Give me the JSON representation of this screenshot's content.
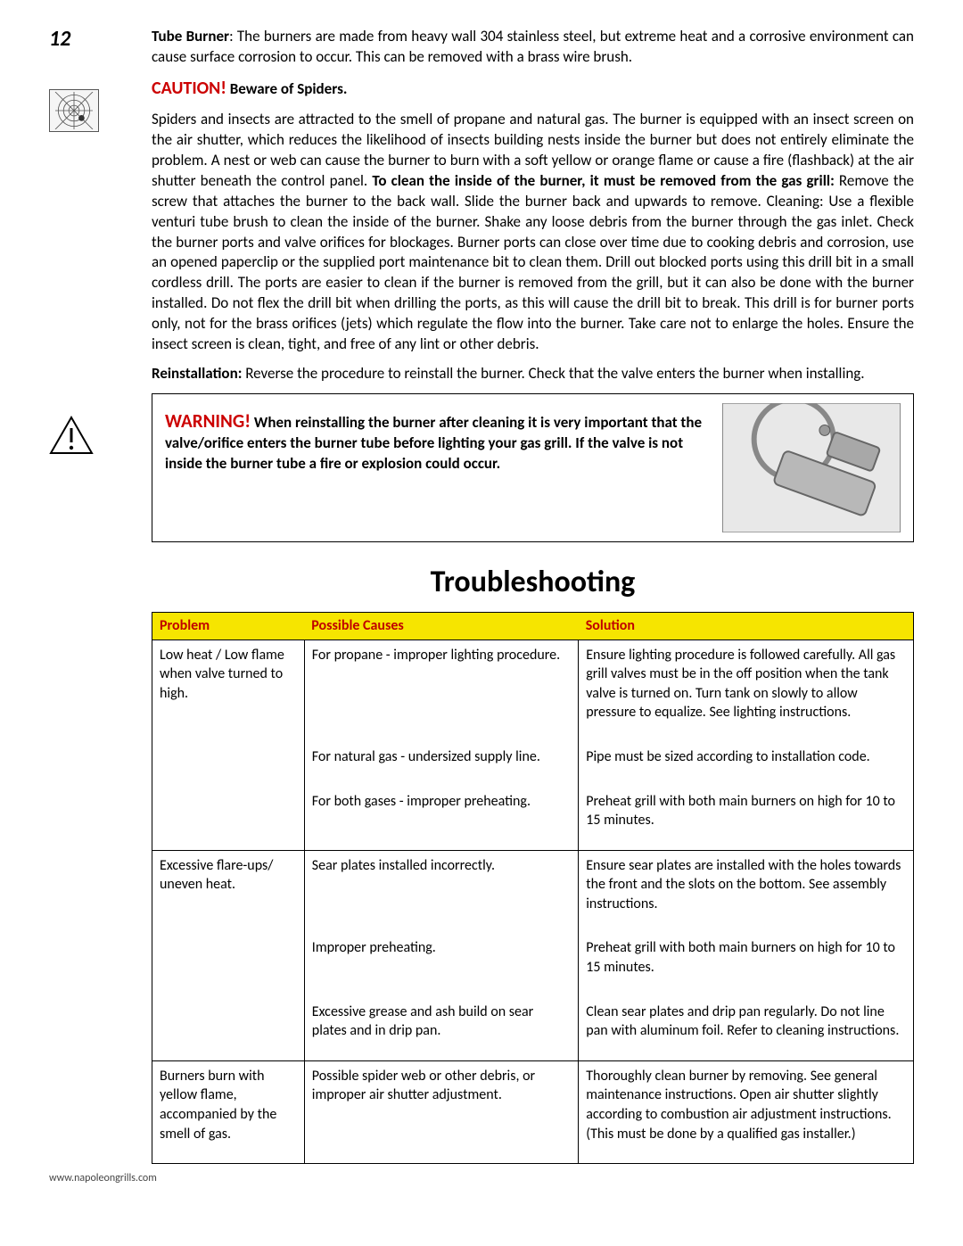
{
  "page_number": "12",
  "tube_burner_label": "Tube Burner",
  "tube_burner_text": ": The burners are made from heavy wall 304 stainless steel, but extreme heat and a corrosive environment can cause surface corrosion to occur. This can be removed with a brass wire brush.",
  "caution_leader": "CAUTION!",
  "caution_rest": " Beware of Spiders.",
  "spider_para_1": "Spiders and insects are attracted to the smell of propane and natural gas. The burner is equipped with an insect screen on the air shutter, which reduces the likelihood of insects building nests inside the burner but does not entirely eliminate the problem. A nest or web can cause the burner to burn with a soft yellow or orange flame or cause a fire (flashback) at the air shutter beneath the control panel. ",
  "spider_bold_1": "To clean the inside of the burner, it must be removed from the gas grill:",
  "spider_para_2": " Remove the screw that attaches the burner to the back wall.  Slide the burner back and upwards to remove.  Cleaning: Use a flexible venturi tube brush to clean the inside of the burner. Shake any loose debris from the burner through the gas inlet. Check the burner ports and valve orifices for blockages. Burner ports can close over time due to cooking debris and corrosion, use an opened paperclip or the supplied port maintenance bit to clean them.  Drill out blocked ports using this drill bit in a small cordless drill. The ports are easier to clean if the burner is removed from the grill, but it can also be done with the burner installed. Do not flex the drill bit when drilling the ports, as this will cause the drill bit to break. This drill is for burner ports only, not for the brass orifices (jets) which regulate the flow into the burner. Take care not to enlarge the holes.  Ensure the insect screen is clean, tight, and free of any lint or other debris.",
  "reinstall_label": "Reinstallation:",
  "reinstall_text": " Reverse the procedure to reinstall the burner. Check that the valve enters the burner when installing.",
  "warning_leader": "WARNING!",
  "warning_body": " When reinstalling the burner after cleaning it is very important that the valve/orifice enters the burner tube before lighting your gas grill. If the valve is not inside the burner tube a fire or explosion could occur.",
  "troubleshooting_heading": "Troubleshooting",
  "table": {
    "headers": {
      "problem": "Problem",
      "causes": "Possible Causes",
      "solution": "Solution"
    },
    "header_bg": "#f6e500",
    "header_fg": "#c00000",
    "col_widths_pct": [
      20,
      36,
      44
    ],
    "rows": [
      {
        "sep": true,
        "problem": "Low heat / Low flame when valve turned to high.",
        "cause": "For propane - improper lighting procedure.",
        "solution": "Ensure lighting procedure is followed carefully.  All gas grill valves must be in the off position when the tank valve is turned on. Turn tank on slowly to allow pressure to equalize. See lighting instructions."
      },
      {
        "sep": false,
        "problem": "",
        "cause": "For natural gas - undersized supply line.",
        "solution": "Pipe must be sized according to installation code."
      },
      {
        "sep": false,
        "problem": "",
        "cause": "For both gases - improper preheating.",
        "solution": "Preheat grill with both main burners on high for 10 to 15 minutes."
      },
      {
        "sep": true,
        "problem": "Excessive flare-ups/ uneven heat.",
        "cause": "Sear plates installed incorrectly.",
        "solution": "Ensure sear plates are installed with the holes towards the front and the slots on the bottom. See assembly instructions."
      },
      {
        "sep": false,
        "problem": "",
        "cause": "Improper preheating.",
        "solution": "Preheat grill with both main burners on high for 10 to 15 minutes."
      },
      {
        "sep": false,
        "problem": "",
        "cause": "Excessive grease and ash build on sear plates and in drip pan.",
        "solution": "Clean sear plates and drip pan regularly. Do not line pan with aluminum foil. Refer to cleaning instructions."
      },
      {
        "sep": true,
        "problem": "Burners burn with yellow flame, accompanied by the smell of gas.",
        "cause": "Possible spider web or other debris, or improper air shutter adjustment.",
        "solution": "Thoroughly clean burner by removing. See general maintenance instructions. Open air shutter slightly according to combustion air adjustment instructions. (This must be done by a qualified gas installer.)"
      }
    ]
  },
  "footer_url": "www.napoleongrills.com"
}
